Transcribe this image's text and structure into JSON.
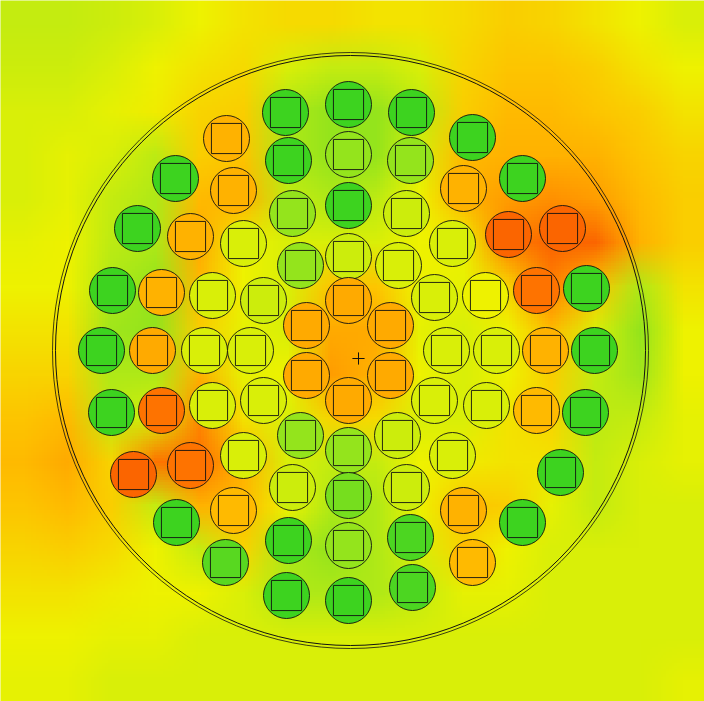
{
  "chart_data": {
    "type": "heatmap",
    "tick_labels": false,
    "xlim": [
      0,
      704
    ],
    "ylim": [
      0,
      701
    ],
    "zlim": [
      0,
      100
    ],
    "cells": [
      [
        40,
        40,
        42,
        45,
        50,
        55,
        58,
        58,
        55,
        55,
        58,
        62,
        60,
        55,
        50,
        45
      ],
      [
        42,
        42,
        45,
        50,
        55,
        58,
        45,
        40,
        40,
        45,
        60,
        65,
        65,
        62,
        55,
        50
      ],
      [
        45,
        45,
        48,
        52,
        60,
        62,
        35,
        30,
        30,
        38,
        62,
        68,
        68,
        65,
        62,
        55
      ],
      [
        45,
        48,
        45,
        38,
        62,
        65,
        35,
        30,
        30,
        45,
        68,
        70,
        70,
        70,
        65,
        60
      ],
      [
        45,
        48,
        40,
        35,
        68,
        70,
        40,
        35,
        38,
        50,
        70,
        75,
        78,
        75,
        68,
        62
      ],
      [
        48,
        50,
        38,
        35,
        72,
        50,
        45,
        45,
        45,
        50,
        50,
        82,
        88,
        88,
        70,
        62
      ],
      [
        50,
        50,
        35,
        30,
        68,
        50,
        45,
        65,
        65,
        50,
        48,
        60,
        82,
        65,
        35,
        55
      ],
      [
        55,
        55,
        32,
        30,
        62,
        48,
        45,
        72,
        72,
        48,
        45,
        50,
        68,
        45,
        30,
        50
      ],
      [
        60,
        60,
        35,
        35,
        70,
        48,
        50,
        75,
        70,
        50,
        45,
        50,
        62,
        40,
        32,
        50
      ],
      [
        65,
        68,
        38,
        45,
        80,
        55,
        45,
        60,
        58,
        45,
        45,
        55,
        60,
        38,
        40,
        48
      ],
      [
        68,
        72,
        60,
        85,
        85,
        70,
        45,
        40,
        40,
        50,
        52,
        55,
        55,
        40,
        45,
        48
      ],
      [
        65,
        68,
        62,
        40,
        70,
        68,
        50,
        35,
        35,
        50,
        65,
        62,
        48,
        40,
        45,
        45
      ],
      [
        60,
        62,
        58,
        50,
        40,
        60,
        35,
        30,
        35,
        45,
        60,
        50,
        45,
        45,
        45,
        45
      ],
      [
        55,
        55,
        52,
        50,
        50,
        45,
        35,
        35,
        35,
        40,
        48,
        48,
        45,
        45,
        45,
        45
      ],
      [
        50,
        50,
        48,
        48,
        45,
        45,
        45,
        45,
        45,
        45,
        45,
        45,
        45,
        45,
        45,
        45
      ],
      [
        48,
        48,
        45,
        45,
        45,
        45,
        45,
        45,
        45,
        45,
        45,
        45,
        45,
        45,
        45,
        48
      ]
    ],
    "core": {
      "x": 350,
      "y": 350,
      "r": 295
    },
    "center": {
      "x": 358,
      "y": 358
    },
    "rods": [
      {
        "x": 285,
        "y": 112,
        "value": 15
      },
      {
        "x": 348,
        "y": 104,
        "value": 15
      },
      {
        "x": 411,
        "y": 112,
        "value": 15
      },
      {
        "x": 226,
        "y": 138,
        "value": 70
      },
      {
        "x": 472,
        "y": 137,
        "value": 15
      },
      {
        "x": 175,
        "y": 178,
        "value": 15
      },
      {
        "x": 288,
        "y": 160,
        "value": 15
      },
      {
        "x": 348,
        "y": 154,
        "value": 30
      },
      {
        "x": 410,
        "y": 160,
        "value": 30
      },
      {
        "x": 522,
        "y": 178,
        "value": 15
      },
      {
        "x": 233,
        "y": 190,
        "value": 70
      },
      {
        "x": 463,
        "y": 188,
        "value": 70
      },
      {
        "x": 348,
        "y": 205,
        "value": 15
      },
      {
        "x": 292,
        "y": 213,
        "value": 30
      },
      {
        "x": 406,
        "y": 213,
        "value": 42
      },
      {
        "x": 137,
        "y": 228,
        "value": 15
      },
      {
        "x": 190,
        "y": 236,
        "value": 70
      },
      {
        "x": 508,
        "y": 234,
        "value": 88
      },
      {
        "x": 562,
        "y": 228,
        "value": 88
      },
      {
        "x": 243,
        "y": 243,
        "value": 45
      },
      {
        "x": 452,
        "y": 243,
        "value": 45
      },
      {
        "x": 300,
        "y": 265,
        "value": 30
      },
      {
        "x": 348,
        "y": 256,
        "value": 42
      },
      {
        "x": 398,
        "y": 265,
        "value": 45
      },
      {
        "x": 112,
        "y": 290,
        "value": 15
      },
      {
        "x": 161,
        "y": 292,
        "value": 70
      },
      {
        "x": 212,
        "y": 295,
        "value": 45
      },
      {
        "x": 263,
        "y": 300,
        "value": 42
      },
      {
        "x": 434,
        "y": 297,
        "value": 45
      },
      {
        "x": 485,
        "y": 295,
        "value": 50
      },
      {
        "x": 536,
        "y": 290,
        "value": 85
      },
      {
        "x": 586,
        "y": 288,
        "value": 15
      },
      {
        "x": 306,
        "y": 325,
        "value": 72
      },
      {
        "x": 348,
        "y": 300,
        "value": 72
      },
      {
        "x": 390,
        "y": 325,
        "value": 72
      },
      {
        "x": 101,
        "y": 350,
        "value": 15
      },
      {
        "x": 152,
        "y": 350,
        "value": 72
      },
      {
        "x": 204,
        "y": 350,
        "value": 45
      },
      {
        "x": 250,
        "y": 350,
        "value": 45
      },
      {
        "x": 446,
        "y": 350,
        "value": 45
      },
      {
        "x": 496,
        "y": 350,
        "value": 45
      },
      {
        "x": 545,
        "y": 350,
        "value": 70
      },
      {
        "x": 594,
        "y": 350,
        "value": 15
      },
      {
        "x": 306,
        "y": 375,
        "value": 72
      },
      {
        "x": 390,
        "y": 375,
        "value": 72
      },
      {
        "x": 348,
        "y": 400,
        "value": 72
      },
      {
        "x": 111,
        "y": 412,
        "value": 15
      },
      {
        "x": 161,
        "y": 410,
        "value": 85
      },
      {
        "x": 212,
        "y": 405,
        "value": 45
      },
      {
        "x": 263,
        "y": 400,
        "value": 45
      },
      {
        "x": 434,
        "y": 400,
        "value": 45
      },
      {
        "x": 486,
        "y": 405,
        "value": 45
      },
      {
        "x": 536,
        "y": 410,
        "value": 68
      },
      {
        "x": 585,
        "y": 412,
        "value": 15
      },
      {
        "x": 300,
        "y": 435,
        "value": 30
      },
      {
        "x": 348,
        "y": 450,
        "value": 30
      },
      {
        "x": 397,
        "y": 435,
        "value": 42
      },
      {
        "x": 133,
        "y": 474,
        "value": 88
      },
      {
        "x": 190,
        "y": 465,
        "value": 85
      },
      {
        "x": 243,
        "y": 455,
        "value": 45
      },
      {
        "x": 452,
        "y": 455,
        "value": 45
      },
      {
        "x": 560,
        "y": 472,
        "value": 15
      },
      {
        "x": 292,
        "y": 487,
        "value": 42
      },
      {
        "x": 348,
        "y": 495,
        "value": 25
      },
      {
        "x": 406,
        "y": 487,
        "value": 42
      },
      {
        "x": 176,
        "y": 522,
        "value": 15
      },
      {
        "x": 233,
        "y": 510,
        "value": 68
      },
      {
        "x": 463,
        "y": 510,
        "value": 70
      },
      {
        "x": 522,
        "y": 522,
        "value": 15
      },
      {
        "x": 288,
        "y": 540,
        "value": 15
      },
      {
        "x": 348,
        "y": 545,
        "value": 30
      },
      {
        "x": 410,
        "y": 537,
        "value": 18
      },
      {
        "x": 225,
        "y": 562,
        "value": 20
      },
      {
        "x": 472,
        "y": 562,
        "value": 68
      },
      {
        "x": 286,
        "y": 595,
        "value": 15
      },
      {
        "x": 348,
        "y": 600,
        "value": 15
      },
      {
        "x": 412,
        "y": 587,
        "value": 18
      }
    ]
  }
}
